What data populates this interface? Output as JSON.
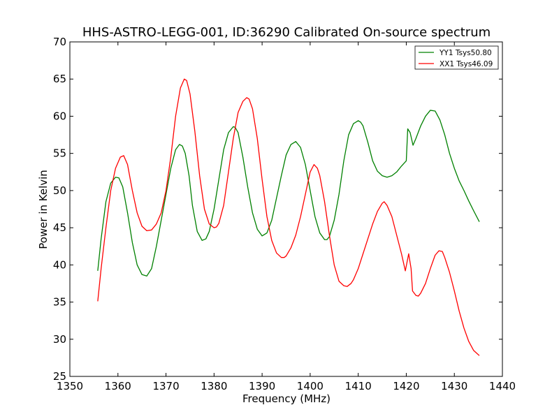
{
  "chart_data": {
    "type": "line",
    "title": "HHS-ASTRO-LEGG-001, ID:36290 Calibrated On-source spectrum",
    "xlabel": "Frequency (MHz)",
    "ylabel": "Power in Kelvin",
    "xlim": [
      1350,
      1440
    ],
    "ylim": [
      25,
      70
    ],
    "xticks": [
      1350,
      1360,
      1370,
      1380,
      1390,
      1400,
      1410,
      1420,
      1430,
      1440
    ],
    "yticks": [
      25,
      30,
      35,
      40,
      45,
      50,
      55,
      60,
      65,
      70
    ],
    "grid": false,
    "legend_position": "top-right",
    "series": [
      {
        "name": "YY1 Tsys50.80",
        "color": "#008000",
        "x": [
          1355.8,
          1356.5,
          1357.5,
          1358.5,
          1359.5,
          1360.2,
          1361.0,
          1362.0,
          1363.0,
          1364.0,
          1365.0,
          1366.0,
          1367.0,
          1368.0,
          1369.0,
          1370.0,
          1371.0,
          1372.0,
          1372.8,
          1373.4,
          1374.0,
          1374.8,
          1375.5,
          1376.5,
          1377.5,
          1378.3,
          1379.0,
          1380.0,
          1381.0,
          1382.0,
          1383.0,
          1384.0,
          1384.4,
          1385.0,
          1386.0,
          1387.0,
          1388.0,
          1389.0,
          1390.0,
          1391.0,
          1392.0,
          1393.0,
          1394.0,
          1395.0,
          1396.0,
          1397.0,
          1398.0,
          1399.0,
          1400.0,
          1401.0,
          1402.0,
          1403.0,
          1403.5,
          1404.0,
          1405.0,
          1406.0,
          1407.0,
          1408.0,
          1409.0,
          1410.0,
          1410.5,
          1411.0,
          1412.0,
          1413.0,
          1414.0,
          1415.0,
          1416.0,
          1417.0,
          1418.0,
          1419.0,
          1420.0,
          1420.3,
          1420.8,
          1421.4,
          1422.0,
          1423.0,
          1424.0,
          1425.0,
          1426.0,
          1427.0,
          1428.0,
          1429.0,
          1430.0,
          1431.0,
          1432.0,
          1433.0,
          1434.0,
          1435.2
        ],
        "values": [
          39.2,
          43.5,
          48.5,
          51.0,
          51.8,
          51.7,
          50.5,
          47.0,
          43.0,
          40.0,
          38.7,
          38.5,
          39.5,
          42.5,
          46.0,
          49.5,
          53.0,
          55.5,
          56.2,
          56.0,
          55.0,
          52.0,
          48.0,
          44.5,
          43.3,
          43.5,
          44.5,
          47.5,
          51.5,
          55.5,
          57.8,
          58.6,
          58.5,
          57.8,
          54.5,
          50.5,
          47.0,
          44.8,
          43.9,
          44.3,
          46.0,
          49.0,
          52.0,
          54.8,
          56.2,
          56.6,
          55.8,
          53.5,
          50.0,
          46.5,
          44.3,
          43.4,
          43.4,
          43.8,
          46.0,
          49.5,
          54.0,
          57.5,
          59.0,
          59.4,
          59.2,
          58.7,
          56.5,
          54.0,
          52.6,
          52.0,
          51.8,
          52.0,
          52.5,
          53.3,
          54.0,
          58.3,
          57.8,
          56.1,
          57.0,
          58.7,
          60.0,
          60.8,
          60.7,
          59.5,
          57.5,
          55.0,
          53.0,
          51.3,
          50.0,
          48.6,
          47.3,
          45.8
        ]
      },
      {
        "name": "XX1 Tsys46.09",
        "color": "#ff0000",
        "x": [
          1355.8,
          1356.5,
          1357.5,
          1358.5,
          1359.5,
          1360.5,
          1361.2,
          1362.0,
          1363.0,
          1364.0,
          1365.0,
          1366.0,
          1367.0,
          1368.0,
          1369.0,
          1370.0,
          1371.0,
          1372.0,
          1373.0,
          1373.8,
          1374.3,
          1375.0,
          1376.0,
          1377.0,
          1378.0,
          1379.0,
          1380.0,
          1380.5,
          1381.0,
          1382.0,
          1383.0,
          1384.0,
          1385.0,
          1386.0,
          1386.8,
          1387.3,
          1388.0,
          1389.0,
          1390.0,
          1391.0,
          1392.0,
          1393.0,
          1394.0,
          1394.6,
          1395.0,
          1396.0,
          1397.0,
          1398.0,
          1399.0,
          1400.0,
          1400.8,
          1401.5,
          1402.0,
          1403.0,
          1404.0,
          1405.0,
          1406.0,
          1407.0,
          1407.7,
          1408.5,
          1409.0,
          1410.0,
          1411.0,
          1412.0,
          1413.0,
          1414.0,
          1415.0,
          1415.4,
          1416.0,
          1417.0,
          1418.0,
          1419.0,
          1419.8,
          1420.5,
          1421.0,
          1421.3,
          1422.0,
          1422.5,
          1423.0,
          1424.0,
          1425.0,
          1426.0,
          1426.8,
          1427.5,
          1428.0,
          1429.0,
          1430.0,
          1431.0,
          1432.0,
          1433.0,
          1434.0,
          1435.2
        ],
        "values": [
          35.1,
          39.5,
          45.0,
          50.0,
          53.0,
          54.5,
          54.7,
          53.5,
          50.0,
          47.0,
          45.2,
          44.6,
          44.7,
          45.5,
          47.0,
          50.0,
          54.5,
          60.0,
          63.8,
          65.0,
          64.8,
          63.0,
          58.0,
          52.0,
          47.5,
          45.5,
          45.0,
          45.1,
          45.6,
          48.0,
          52.5,
          57.0,
          60.5,
          62.0,
          62.5,
          62.3,
          61.0,
          57.0,
          51.5,
          46.5,
          43.3,
          41.6,
          41.0,
          41.0,
          41.2,
          42.3,
          44.0,
          46.5,
          49.5,
          52.5,
          53.5,
          53.0,
          52.0,
          48.5,
          44.0,
          40.0,
          37.8,
          37.2,
          37.1,
          37.5,
          38.0,
          39.5,
          41.5,
          43.5,
          45.5,
          47.2,
          48.3,
          48.5,
          48.0,
          46.5,
          44.0,
          41.5,
          39.2,
          41.5,
          39.5,
          36.5,
          35.9,
          35.8,
          36.2,
          37.5,
          39.5,
          41.3,
          41.9,
          41.8,
          41.0,
          39.0,
          36.5,
          33.8,
          31.5,
          29.7,
          28.5,
          27.8
        ]
      }
    ]
  }
}
